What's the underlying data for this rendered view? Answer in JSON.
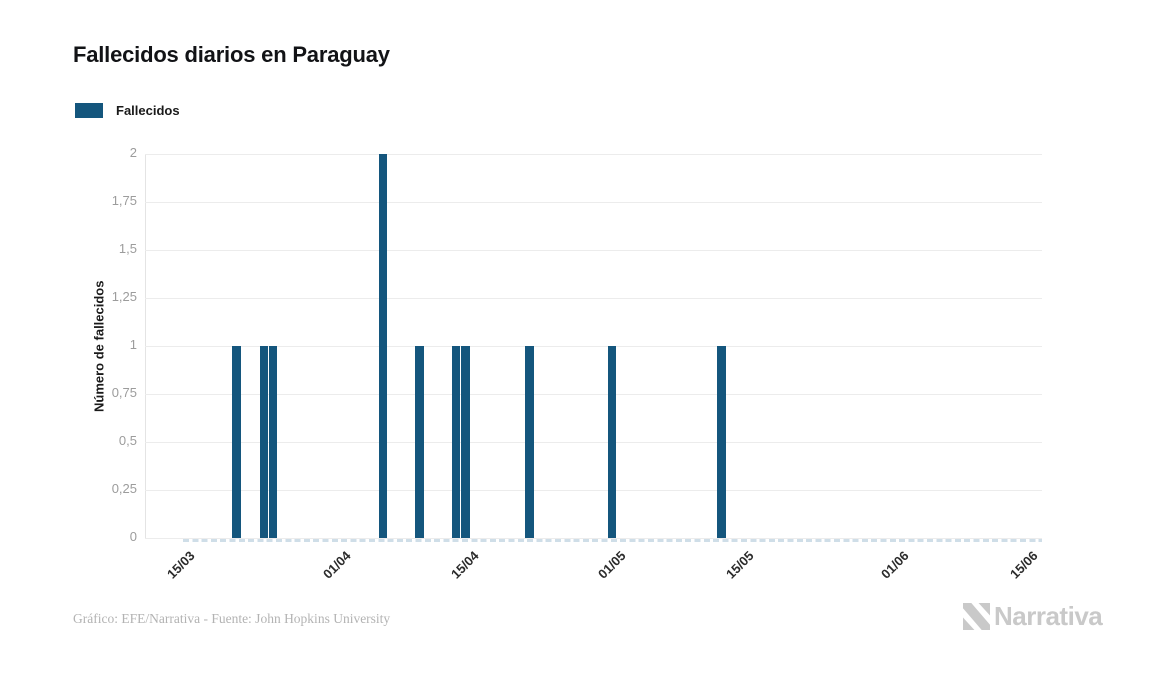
{
  "title": "Fallecidos diarios en Paraguay",
  "legend": {
    "label": "Fallecidos",
    "swatch_color": "#14567d"
  },
  "y_axis": {
    "title": "Número de fallecidos"
  },
  "footer": {
    "credit": "Gráfico: EFE/Narrativa - Fuente: John Hopkins University"
  },
  "logo": {
    "icon": "narrativa-n-icon",
    "text": "Narrativa",
    "color": "#c9c9c9"
  },
  "chart_data": {
    "type": "bar",
    "title": "Fallecidos diarios en Paraguay",
    "xlabel": "",
    "ylabel": "Número de fallecidos",
    "ylim": [
      0,
      2
    ],
    "grid": true,
    "legend_position": "top-left",
    "bar_color": "#14567d",
    "zero_line_style": "dashed",
    "x_domain": [
      "12/03",
      "18/06"
    ],
    "x_domain_days": 98,
    "y_ticks": [
      {
        "value": 0,
        "label": "0"
      },
      {
        "value": 0.25,
        "label": "0,25"
      },
      {
        "value": 0.5,
        "label": "0,5"
      },
      {
        "value": 0.75,
        "label": "0,75"
      },
      {
        "value": 1,
        "label": "1"
      },
      {
        "value": 1.25,
        "label": "1,25"
      },
      {
        "value": 1.5,
        "label": "1,5"
      },
      {
        "value": 1.75,
        "label": "1,75"
      },
      {
        "value": 2,
        "label": "2"
      }
    ],
    "x_ticks": [
      {
        "label": "15/03",
        "day": 3
      },
      {
        "label": "01/04",
        "day": 20
      },
      {
        "label": "15/04",
        "day": 34
      },
      {
        "label": "01/05",
        "day": 50
      },
      {
        "label": "15/05",
        "day": 64
      },
      {
        "label": "01/06",
        "day": 81
      },
      {
        "label": "15/06",
        "day": 95
      }
    ],
    "series": [
      {
        "name": "Fallecidos",
        "points": [
          {
            "date": "22/03",
            "day": 10,
            "value": 1
          },
          {
            "date": "25/03",
            "day": 13,
            "value": 1
          },
          {
            "date": "26/03",
            "day": 14,
            "value": 1
          },
          {
            "date": "07/04",
            "day": 26,
            "value": 2
          },
          {
            "date": "11/04",
            "day": 30,
            "value": 1
          },
          {
            "date": "15/04",
            "day": 34,
            "value": 1
          },
          {
            "date": "16/04",
            "day": 35,
            "value": 1
          },
          {
            "date": "23/04",
            "day": 42,
            "value": 1
          },
          {
            "date": "02/05",
            "day": 51,
            "value": 1
          },
          {
            "date": "14/05",
            "day": 63,
            "value": 1
          }
        ]
      }
    ]
  }
}
